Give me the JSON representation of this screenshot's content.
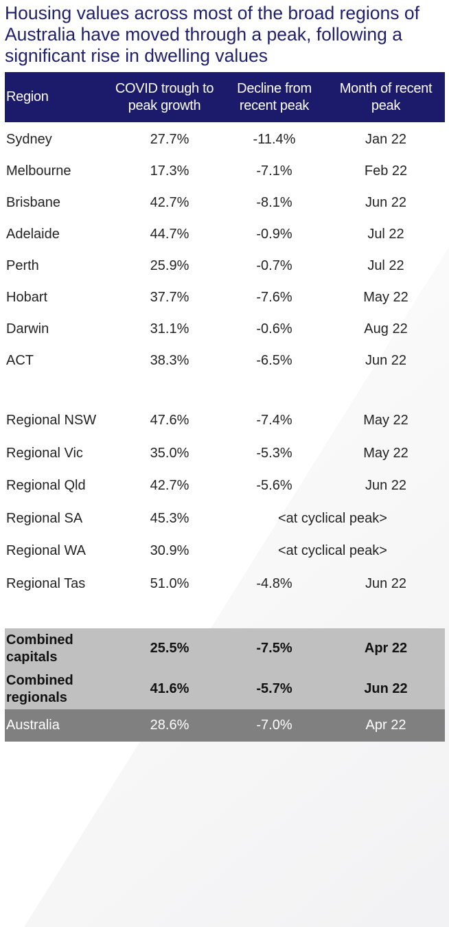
{
  "title": "Housing values across most of the broad regions of Australia have moved through a peak, following a significant rise in dwelling values",
  "colors": {
    "header_bg": "#1c1b6b",
    "title": "#1f1f6e",
    "summary_bg": "#c0c0c0",
    "total_bg": "#808080"
  },
  "columns": [
    "Region",
    "COVID trough to peak growth",
    "Decline from recent peak",
    "Month of recent peak"
  ],
  "capitals": [
    {
      "region": "Sydney",
      "growth": "27.7%",
      "decline": "-11.4%",
      "month": "Jan 22"
    },
    {
      "region": "Melbourne",
      "growth": "17.3%",
      "decline": "-7.1%",
      "month": "Feb 22"
    },
    {
      "region": "Brisbane",
      "growth": "42.7%",
      "decline": "-8.1%",
      "month": "Jun 22"
    },
    {
      "region": "Adelaide",
      "growth": "44.7%",
      "decline": "-0.9%",
      "month": "Jul 22"
    },
    {
      "region": "Perth",
      "growth": "25.9%",
      "decline": "-0.7%",
      "month": "Jul 22"
    },
    {
      "region": "Hobart",
      "growth": "37.7%",
      "decline": "-7.6%",
      "month": "May 22"
    },
    {
      "region": "Darwin",
      "growth": "31.1%",
      "decline": "-0.6%",
      "month": "Aug 22"
    },
    {
      "region": "ACT",
      "growth": "38.3%",
      "decline": "-6.5%",
      "month": "Jun 22"
    }
  ],
  "regionals": [
    {
      "region": "Regional NSW",
      "growth": "47.6%",
      "decline": "-7.4%",
      "month": "May 22"
    },
    {
      "region": "Regional Vic",
      "growth": "35.0%",
      "decline": "-5.3%",
      "month": "May 22"
    },
    {
      "region": "Regional Qld",
      "growth": "42.7%",
      "decline": "-5.6%",
      "month": "Jun 22"
    },
    {
      "region": "Regional SA",
      "growth": "45.3%",
      "note": "<at cyclical peak>"
    },
    {
      "region": "Regional WA",
      "growth": "30.9%",
      "note": "<at cyclical peak>"
    },
    {
      "region": "Regional Tas",
      "growth": "51.0%",
      "decline": "-4.8%",
      "month": "Jun 22"
    }
  ],
  "summary": [
    {
      "region": "Combined capitals",
      "growth": "25.5%",
      "decline": "-7.5%",
      "month": "Apr 22"
    },
    {
      "region": "Combined regionals",
      "growth": "41.6%",
      "decline": "-5.7%",
      "month": "Jun 22"
    },
    {
      "region": "Australia",
      "growth": "28.6%",
      "decline": "-7.0%",
      "month": "Apr 22"
    }
  ]
}
